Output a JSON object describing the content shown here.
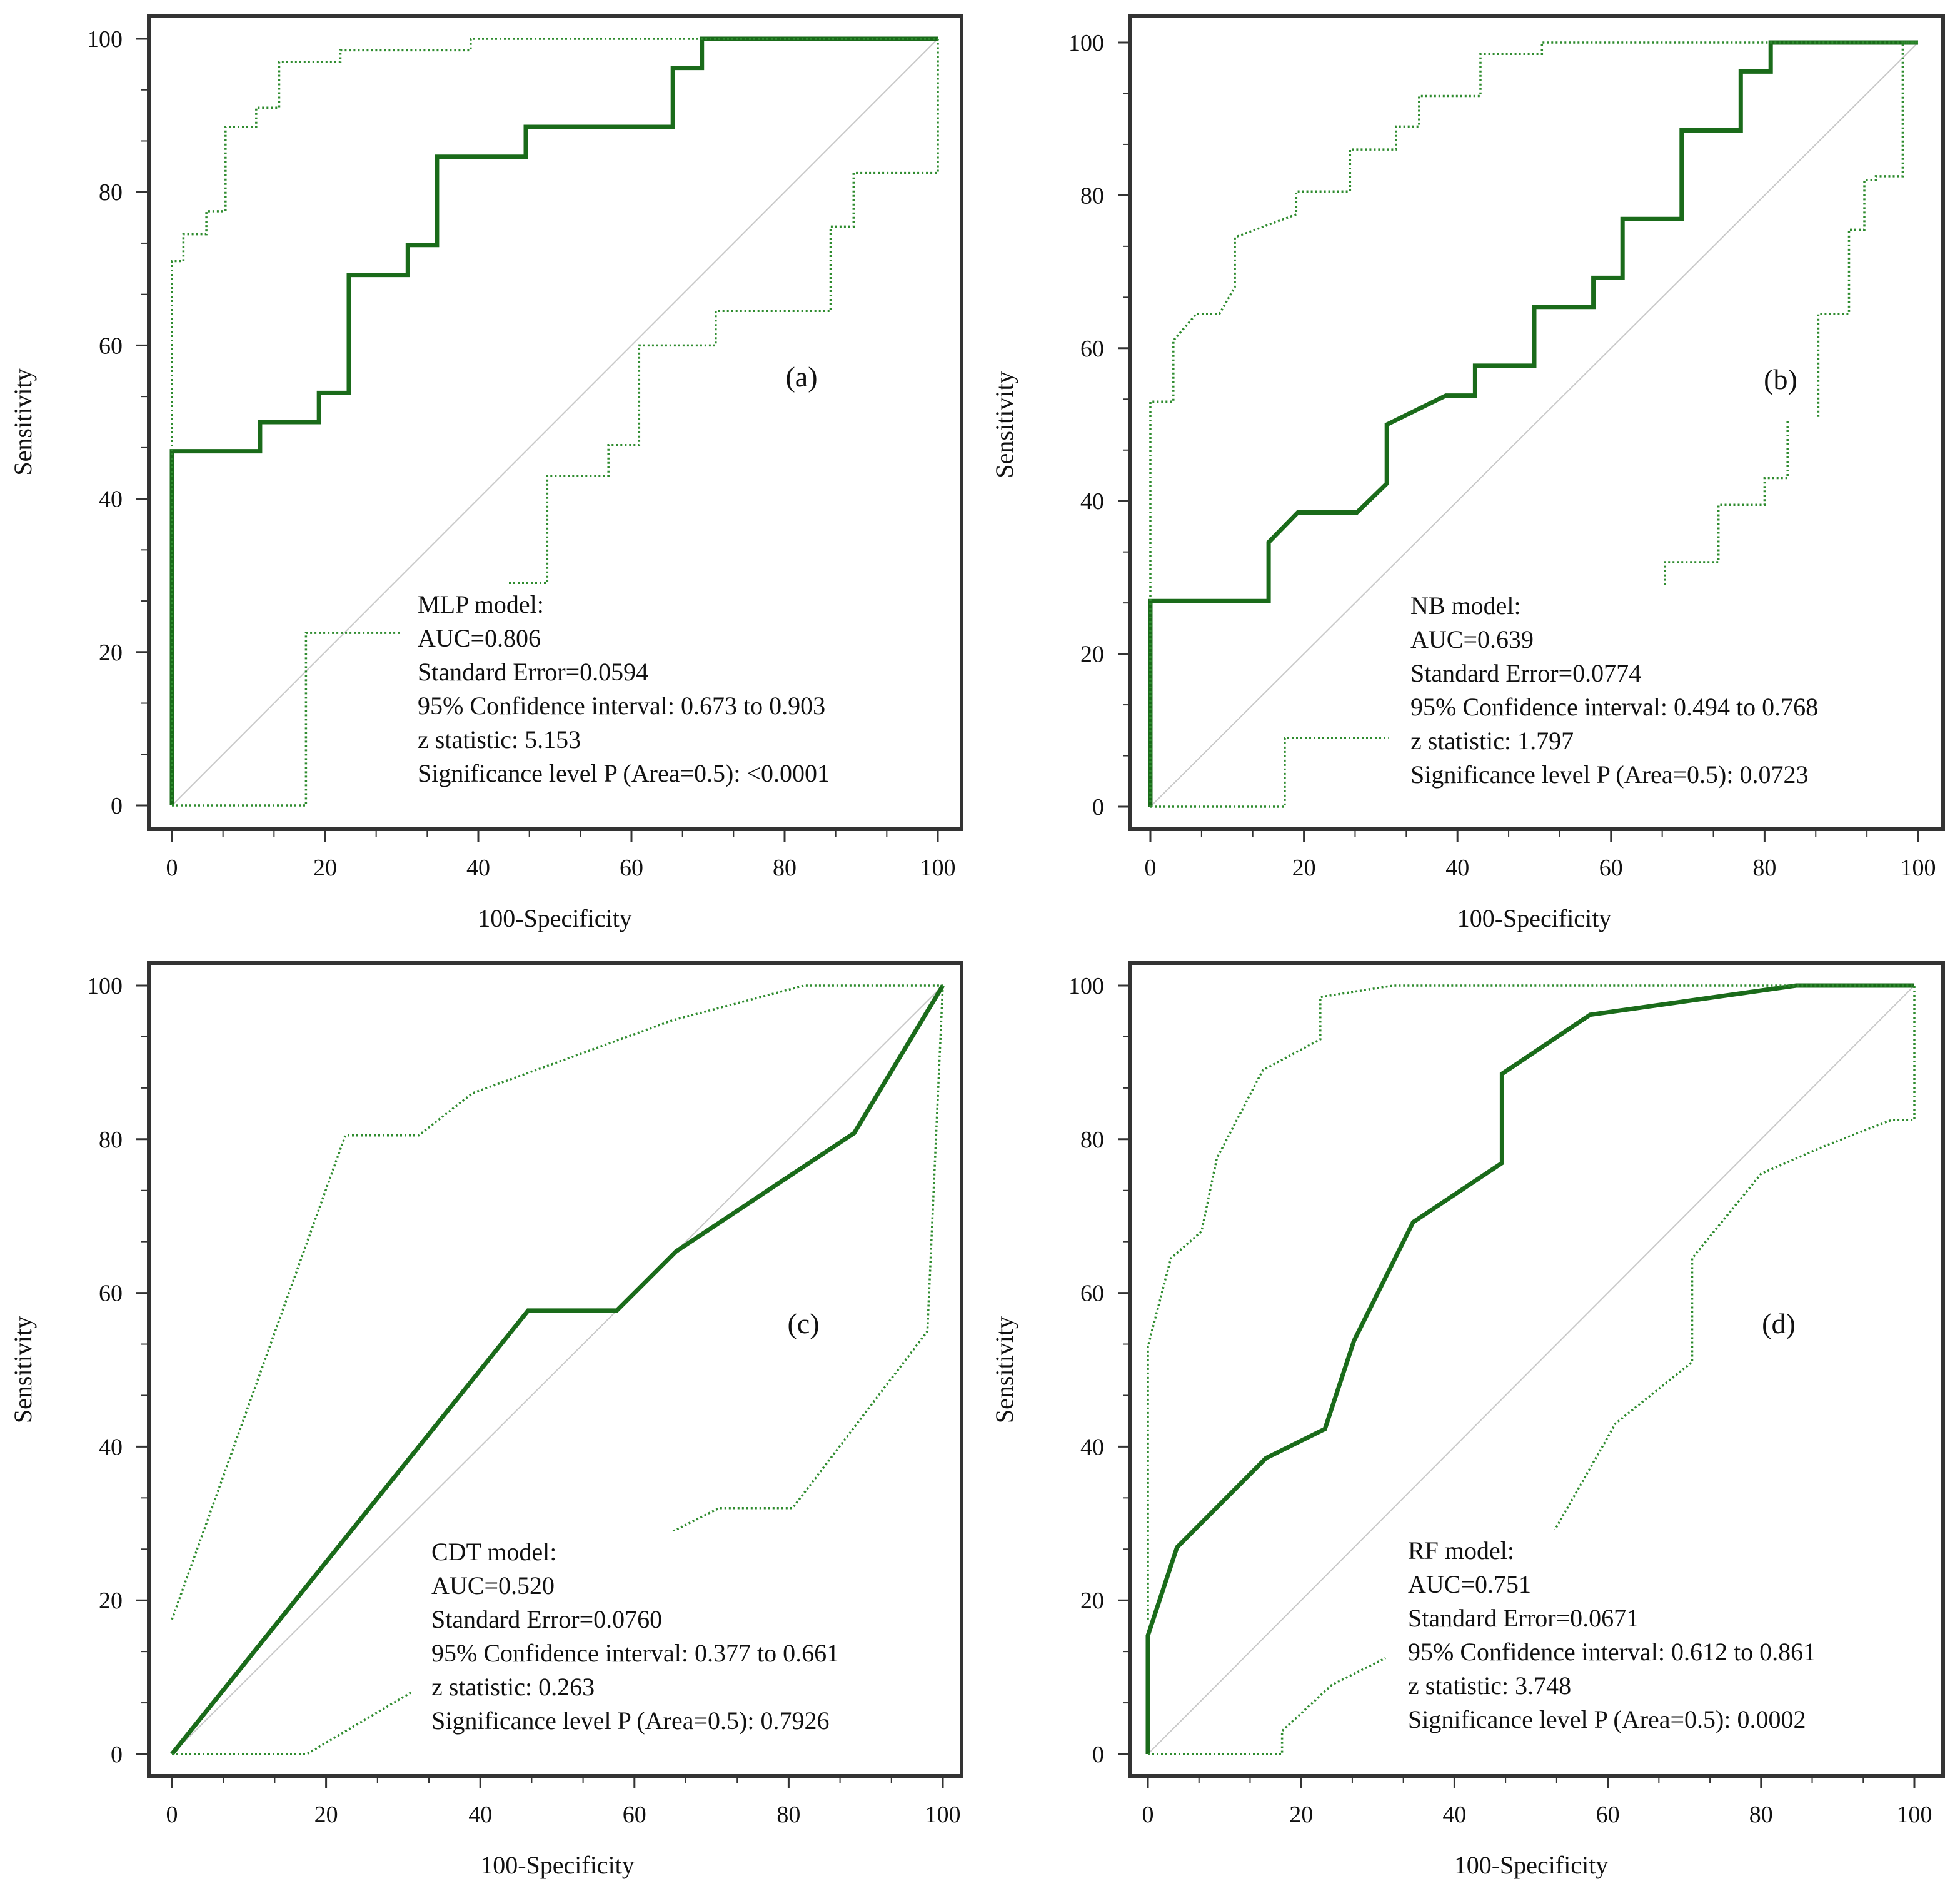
{
  "colors": {
    "roc": "#1a6b1a",
    "ci": "#2e8b2e",
    "diagonal": "#c8c8c8",
    "frame": "#333333"
  },
  "chart_data": [
    {
      "type": "line",
      "panel_label": "(a)",
      "xlabel": "100-Specificity",
      "ylabel": "Sensitivity",
      "xlim": [
        0,
        100
      ],
      "ylim": [
        0,
        100
      ],
      "xticks": [
        0,
        20,
        40,
        60,
        80,
        100
      ],
      "yticks": [
        0,
        20,
        40,
        60,
        80,
        100
      ],
      "grid": false,
      "stats": [
        "MLP model:",
        "AUC=0.806",
        "Standard Error=0.0594",
        "95% Confidence interval: 0.673 to 0.903",
        "z statistic: 5.153",
        "Significance level P (Area=0.5): <0.0001"
      ],
      "series": [
        {
          "name": "ROC",
          "style": "solid",
          "x": [
            0,
            0,
            11.5,
            11.5,
            19.2,
            19.2,
            23.1,
            23.1,
            30.8,
            30.8,
            34.6,
            34.6,
            46.2,
            46.2,
            65.4,
            65.4,
            69.2,
            69.2,
            100
          ],
          "y": [
            0,
            46.2,
            46.2,
            50,
            50,
            53.8,
            53.8,
            69.2,
            69.2,
            73.1,
            73.1,
            84.6,
            84.6,
            88.5,
            88.5,
            96.2,
            96.2,
            100,
            100
          ]
        },
        {
          "name": "95% CI upper",
          "style": "dotted",
          "x": [
            0,
            0,
            1.5,
            1.5,
            4.5,
            4.5,
            7,
            7,
            11,
            11,
            14,
            14,
            22,
            22,
            39,
            39,
            50,
            100
          ],
          "y": [
            0,
            71,
            71,
            74.5,
            74.5,
            77.5,
            77.5,
            88.5,
            88.5,
            91,
            91,
            97,
            97,
            98.5,
            98.5,
            100,
            100,
            100
          ]
        },
        {
          "name": "95% CI lower",
          "style": "dotted",
          "x": [
            0,
            17.5,
            17.5,
            30,
            null,
            44,
            49,
            49,
            57,
            57,
            61,
            61,
            71,
            71,
            86,
            86,
            89,
            89,
            100,
            100
          ],
          "y": [
            0,
            0,
            22.5,
            22.5,
            null,
            29,
            29,
            43,
            43,
            47,
            47,
            60,
            60,
            64.5,
            64.5,
            75.5,
            75.5,
            82.5,
            82.5,
            100
          ]
        }
      ]
    },
    {
      "type": "line",
      "panel_label": "(b)",
      "xlabel": "100-Specificity",
      "ylabel": "Sensitivity",
      "xlim": [
        0,
        100
      ],
      "ylim": [
        0,
        100
      ],
      "xticks": [
        0,
        20,
        40,
        60,
        80,
        100
      ],
      "yticks": [
        0,
        20,
        40,
        60,
        80,
        100
      ],
      "grid": false,
      "stats": [
        "NB model:",
        "AUC=0.639",
        "Standard Error=0.0774",
        "95% Confidence interval: 0.494 to 0.768",
        "z statistic: 1.797",
        "Significance level P (Area=0.5): 0.0723"
      ],
      "series": [
        {
          "name": "ROC",
          "style": "solid",
          "x": [
            0,
            0,
            15.4,
            15.4,
            19.2,
            26.9,
            30.8,
            30.8,
            38.5,
            42.3,
            42.3,
            50,
            50,
            57.7,
            57.7,
            61.5,
            61.5,
            69.2,
            69.2,
            76.9,
            76.9,
            80.8,
            80.8,
            100
          ],
          "y": [
            0,
            26.9,
            26.9,
            34.6,
            38.5,
            38.5,
            42.3,
            50,
            53.8,
            53.8,
            57.7,
            57.7,
            65.4,
            65.4,
            69.2,
            69.2,
            76.9,
            76.9,
            88.5,
            88.5,
            96.2,
            96.2,
            100,
            100
          ]
        },
        {
          "name": "95% CI upper",
          "style": "dotted",
          "x": [
            0,
            0,
            3,
            3,
            6,
            9,
            11,
            11,
            19,
            19,
            26,
            26,
            32,
            32,
            35,
            35,
            43,
            43,
            51,
            51,
            100
          ],
          "y": [
            0,
            53,
            53,
            61,
            64.5,
            64.5,
            68,
            74.5,
            77.5,
            80.5,
            80.5,
            86,
            86,
            89,
            89,
            93,
            93,
            98.5,
            98.5,
            100,
            100
          ]
        },
        {
          "name": "95% CI lower",
          "style": "dotted",
          "x": [
            0,
            17.5,
            17.5,
            31,
            null,
            67,
            67,
            74,
            74,
            80,
            80,
            83,
            83,
            null,
            87,
            87,
            91,
            91,
            93,
            93,
            94.5,
            94.5,
            98,
            98,
            100,
            100
          ],
          "y": [
            0,
            0,
            9,
            9,
            null,
            29,
            32,
            32,
            39.5,
            39.5,
            43,
            43,
            50.5,
            null,
            51,
            64.5,
            64.5,
            75.5,
            75.5,
            82,
            82,
            82.5,
            82.5,
            100,
            100,
            100
          ]
        }
      ]
    },
    {
      "type": "line",
      "panel_label": "(c)",
      "xlabel": "100-Specificity",
      "ylabel": "Sensitivity",
      "xlim": [
        0,
        100
      ],
      "ylim": [
        0,
        100
      ],
      "xticks": [
        0,
        20,
        40,
        60,
        80,
        100
      ],
      "yticks": [
        0,
        20,
        40,
        60,
        80,
        100
      ],
      "grid": false,
      "stats": [
        "CDT model:",
        "AUC=0.520",
        "Standard Error=0.0760",
        "95% Confidence interval: 0.377 to 0.661",
        "z statistic: 0.263",
        "Significance level P (Area=0.5): 0.7926"
      ],
      "series": [
        {
          "name": "ROC",
          "style": "solid",
          "x": [
            0,
            46.2,
            57.7,
            65.4,
            88.5,
            100
          ],
          "y": [
            0,
            57.7,
            57.7,
            65.4,
            80.8,
            100
          ]
        },
        {
          "name": "95% CI upper",
          "style": "dotted",
          "x": [
            0,
            22.5,
            32,
            39,
            65,
            82,
            100
          ],
          "y": [
            17.5,
            80.5,
            80.5,
            86,
            95.5,
            100,
            100
          ]
        },
        {
          "name": "95% CI lower",
          "style": "dotted",
          "x": [
            0,
            17.5,
            31,
            null,
            65,
            71,
            80.5,
            98,
            100
          ],
          "y": [
            0,
            0,
            8,
            null,
            29,
            32,
            32,
            55,
            100
          ]
        }
      ]
    },
    {
      "type": "line",
      "panel_label": "(d)",
      "xlabel": "100-Specificity",
      "ylabel": "Sensitivity",
      "xlim": [
        0,
        100
      ],
      "ylim": [
        0,
        100
      ],
      "xticks": [
        0,
        20,
        40,
        60,
        80,
        100
      ],
      "yticks": [
        0,
        20,
        40,
        60,
        80,
        100
      ],
      "grid": false,
      "stats": [
        "RF model:",
        "AUC=0.751",
        "Standard Error=0.0671",
        "95% Confidence interval: 0.612 to 0.861",
        "z statistic: 3.748",
        "Significance level P (Area=0.5): 0.0002"
      ],
      "series": [
        {
          "name": "ROC",
          "style": "solid",
          "x": [
            0,
            0,
            3.8,
            15.4,
            23.1,
            26.9,
            34.6,
            46.2,
            46.2,
            57.7,
            84.6,
            100
          ],
          "y": [
            0,
            15.4,
            26.9,
            38.5,
            42.3,
            53.8,
            69.2,
            76.9,
            88.5,
            96.2,
            100,
            100
          ]
        },
        {
          "name": "95% CI upper",
          "style": "dotted",
          "x": [
            0,
            0,
            3,
            7,
            9,
            15,
            22.5,
            22.5,
            32,
            100
          ],
          "y": [
            17.5,
            53,
            64.5,
            68,
            77.5,
            89,
            93,
            98.5,
            100,
            100
          ]
        },
        {
          "name": "95% CI lower",
          "style": "dotted",
          "x": [
            0,
            17.5,
            17.5,
            24,
            31,
            null,
            53,
            61,
            71,
            71,
            80,
            88,
            97,
            100,
            100
          ],
          "y": [
            0,
            0,
            3,
            9,
            12.5,
            null,
            29,
            43,
            51,
            64.5,
            75.5,
            79,
            82.5,
            82.5,
            100
          ]
        }
      ]
    }
  ]
}
